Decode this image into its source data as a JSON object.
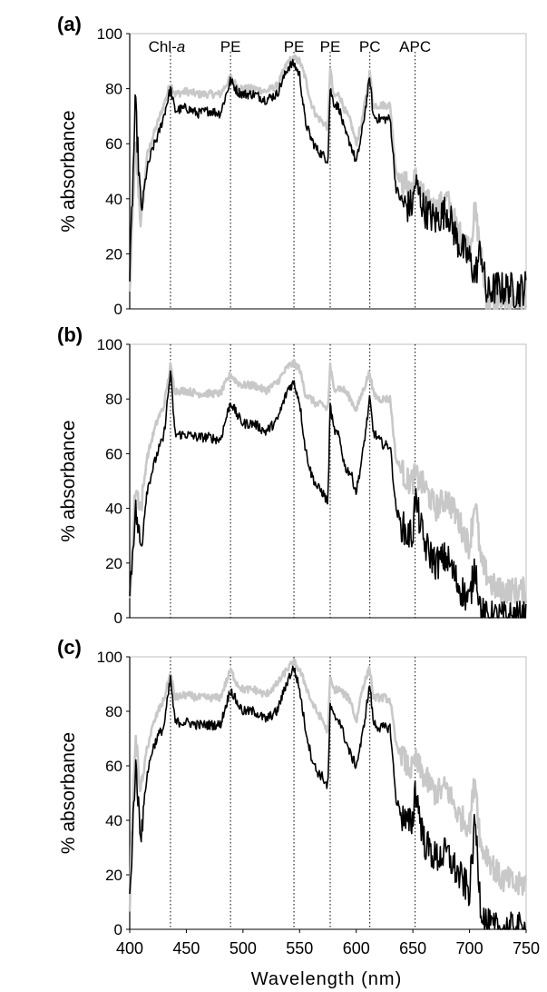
{
  "figure": {
    "xlabel": "Wavelength (nm)",
    "xticks": [
      "400",
      "450",
      "500",
      "550",
      "600",
      "650",
      "700",
      "750"
    ],
    "yticks": [
      "0",
      "20",
      "40",
      "60",
      "80",
      "100"
    ]
  },
  "chart_data": [
    {
      "type": "line",
      "panel": "(a)",
      "ylabel": "% absorbance",
      "xlim": [
        400,
        750
      ],
      "ylim": [
        0,
        100
      ],
      "grid": false,
      "pigment_markers": [
        {
          "label": "Chl-a",
          "x": 436
        },
        {
          "label": "PE",
          "x": 489
        },
        {
          "label": "PE",
          "x": 545
        },
        {
          "label": "PE",
          "x": 577
        },
        {
          "label": "PC",
          "x": 612
        },
        {
          "label": "APC",
          "x": 652
        }
      ],
      "x": [
        400,
        405,
        410,
        415,
        420,
        425,
        430,
        436,
        440,
        450,
        460,
        470,
        480,
        489,
        495,
        500,
        510,
        520,
        530,
        540,
        545,
        550,
        555,
        560,
        565,
        570,
        575,
        577,
        580,
        585,
        590,
        595,
        600,
        605,
        612,
        615,
        620,
        625,
        630,
        635,
        640,
        645,
        650,
        652,
        660,
        670,
        680,
        690,
        700,
        705,
        710,
        715,
        720,
        725,
        730,
        735,
        740,
        745,
        750
      ],
      "series": [
        {
          "color": "#c8c8c8",
          "values": [
            5,
            60,
            30,
            55,
            62,
            68,
            74,
            82,
            78,
            79,
            78,
            78,
            78,
            84,
            81,
            80,
            80,
            79,
            81,
            90,
            91,
            90,
            84,
            75,
            70,
            68,
            66,
            88,
            77,
            78,
            72,
            68,
            60,
            68,
            86,
            74,
            74,
            74,
            74,
            50,
            46,
            45,
            44,
            48,
            40,
            36,
            40,
            28,
            22,
            36,
            20,
            3,
            3,
            3,
            3,
            3,
            3,
            3,
            3
          ]
        },
        {
          "color": "#000000",
          "values": [
            10,
            75,
            35,
            50,
            58,
            63,
            70,
            80,
            72,
            73,
            71,
            72,
            71,
            83,
            79,
            78,
            78,
            76,
            78,
            88,
            89,
            85,
            68,
            62,
            58,
            56,
            54,
            80,
            75,
            73,
            64,
            60,
            53,
            64,
            84,
            70,
            69,
            69,
            69,
            44,
            39,
            37,
            38,
            46,
            36,
            32,
            36,
            24,
            18,
            12,
            22,
            5,
            7,
            8,
            7,
            8,
            6,
            7,
            8
          ]
        }
      ]
    },
    {
      "type": "line",
      "panel": "(b)",
      "ylabel": "% absorbance",
      "xlim": [
        400,
        750
      ],
      "ylim": [
        0,
        100
      ],
      "grid": false,
      "x": [
        400,
        405,
        410,
        415,
        420,
        425,
        430,
        436,
        440,
        450,
        460,
        470,
        480,
        489,
        495,
        500,
        510,
        520,
        530,
        540,
        545,
        550,
        555,
        560,
        565,
        570,
        575,
        577,
        580,
        585,
        590,
        595,
        600,
        605,
        612,
        615,
        620,
        625,
        630,
        635,
        640,
        645,
        650,
        652,
        660,
        670,
        680,
        690,
        700,
        705,
        710,
        715,
        720,
        725,
        730,
        735,
        740,
        745,
        750
      ],
      "series": [
        {
          "color": "#c8c8c8",
          "values": [
            5,
            48,
            40,
            58,
            66,
            73,
            77,
            92,
            83,
            83,
            82,
            82,
            82,
            89,
            86,
            85,
            85,
            83,
            86,
            92,
            93,
            91,
            82,
            80,
            78,
            78,
            76,
            92,
            84,
            84,
            83,
            80,
            76,
            82,
            90,
            82,
            80,
            80,
            80,
            58,
            54,
            50,
            50,
            52,
            48,
            40,
            44,
            36,
            26,
            44,
            20,
            16,
            12,
            10,
            10,
            10,
            10,
            10,
            10
          ]
        },
        {
          "color": "#000000",
          "values": [
            8,
            40,
            25,
            46,
            54,
            61,
            66,
            90,
            67,
            67,
            66,
            66,
            65,
            79,
            74,
            71,
            71,
            68,
            72,
            84,
            86,
            79,
            62,
            53,
            48,
            46,
            42,
            78,
            69,
            66,
            55,
            53,
            46,
            58,
            80,
            68,
            65,
            63,
            63,
            40,
            34,
            30,
            31,
            44,
            27,
            20,
            22,
            12,
            6,
            20,
            2,
            0,
            0,
            0,
            0,
            0,
            0,
            0,
            0
          ]
        }
      ]
    },
    {
      "type": "line",
      "panel": "(c)",
      "ylabel": "% absorbance",
      "xlim": [
        400,
        750
      ],
      "ylim": [
        0,
        100
      ],
      "grid": false,
      "x": [
        400,
        405,
        410,
        415,
        420,
        425,
        430,
        436,
        440,
        450,
        460,
        470,
        480,
        489,
        495,
        500,
        510,
        520,
        530,
        540,
        545,
        550,
        555,
        560,
        565,
        570,
        575,
        577,
        580,
        585,
        590,
        595,
        600,
        605,
        612,
        615,
        620,
        625,
        630,
        635,
        640,
        645,
        650,
        652,
        660,
        670,
        680,
        690,
        700,
        705,
        710,
        715,
        720,
        725,
        730,
        735,
        740,
        745,
        750
      ],
      "series": [
        {
          "color": "#c8c8c8",
          "values": [
            10,
            70,
            50,
            66,
            74,
            80,
            84,
            94,
            85,
            86,
            85,
            85,
            85,
            95,
            90,
            88,
            88,
            86,
            90,
            96,
            98,
            95,
            90,
            84,
            80,
            77,
            72,
            92,
            88,
            88,
            86,
            84,
            76,
            88,
            96,
            85,
            85,
            85,
            84,
            68,
            64,
            60,
            58,
            62,
            56,
            50,
            52,
            42,
            38,
            56,
            30,
            28,
            24,
            20,
            18,
            18,
            16,
            16,
            18
          ]
        },
        {
          "color": "#000000",
          "values": [
            10,
            60,
            35,
            56,
            66,
            71,
            74,
            92,
            76,
            76,
            75,
            75,
            75,
            88,
            83,
            80,
            80,
            77,
            80,
            92,
            96,
            88,
            74,
            64,
            58,
            56,
            52,
            82,
            78,
            77,
            70,
            64,
            60,
            70,
            90,
            76,
            74,
            74,
            74,
            48,
            42,
            38,
            40,
            52,
            32,
            26,
            28,
            20,
            14,
            40,
            8,
            2,
            0,
            0,
            0,
            0,
            0,
            0,
            0
          ]
        }
      ]
    }
  ]
}
